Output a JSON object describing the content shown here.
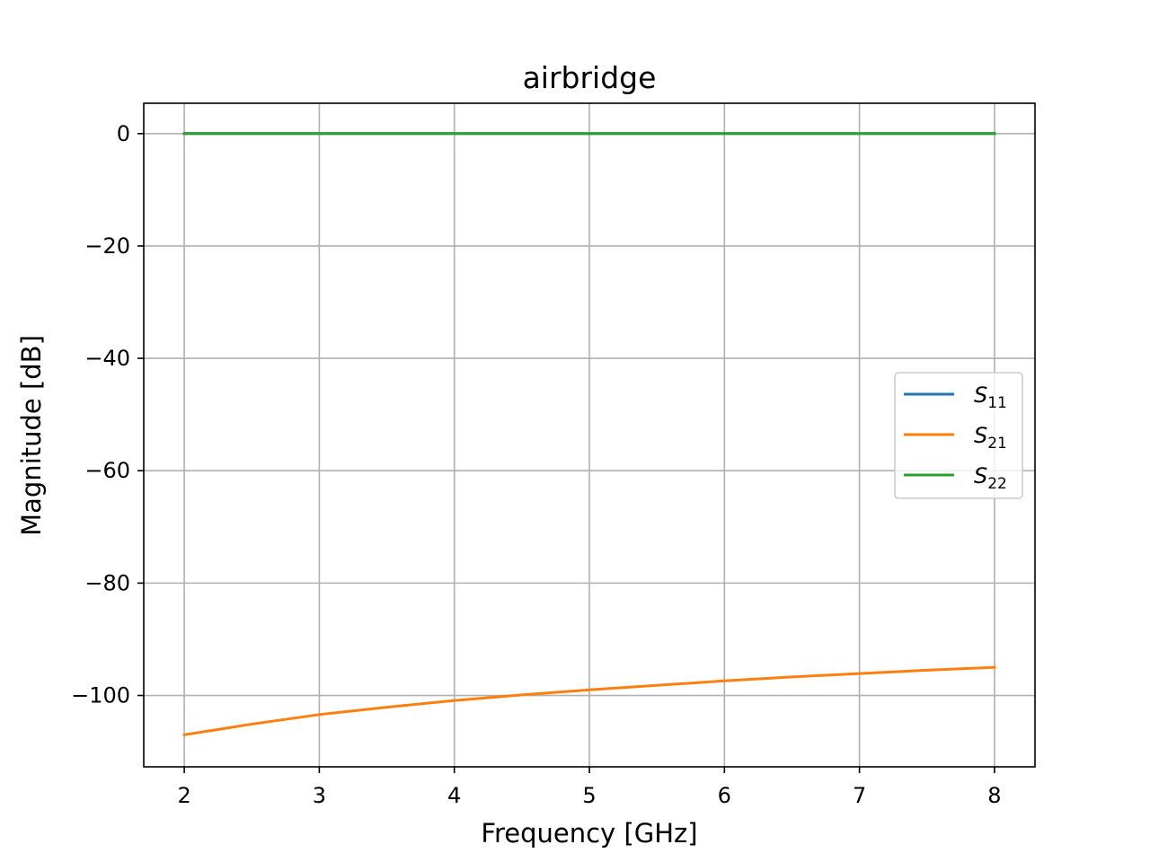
{
  "chart_data": {
    "type": "line",
    "title": "airbridge",
    "xlabel": "Frequency [GHz]",
    "ylabel": "Magnitude [dB]",
    "xlim": [
      1.7,
      8.3
    ],
    "ylim": [
      -112.7,
      5.4
    ],
    "xticks": [
      2,
      3,
      4,
      5,
      6,
      7,
      8
    ],
    "xtick_labels": [
      "2",
      "3",
      "4",
      "5",
      "6",
      "7",
      "8"
    ],
    "yticks": [
      0,
      -20,
      -40,
      -60,
      -80,
      -100
    ],
    "ytick_labels": [
      "0",
      "−20",
      "−40",
      "−60",
      "−80",
      "−100"
    ],
    "grid": true,
    "legend_position": "center-right",
    "series": [
      {
        "name": "S",
        "subscript": "11",
        "color": "#1f77b4",
        "x": [
          2,
          3,
          4,
          5,
          6,
          7,
          8
        ],
        "y": [
          0,
          0,
          0,
          0,
          0,
          0,
          0
        ]
      },
      {
        "name": "S",
        "subscript": "21",
        "color": "#ff7f0e",
        "x": [
          2,
          2.5,
          3,
          3.5,
          4,
          4.5,
          5,
          5.5,
          6,
          6.5,
          7,
          7.5,
          8
        ],
        "y": [
          -107.0,
          -105.1,
          -103.4,
          -102.1,
          -100.9,
          -99.9,
          -99.0,
          -98.2,
          -97.4,
          -96.7,
          -96.1,
          -95.5,
          -95.0
        ]
      },
      {
        "name": "S",
        "subscript": "22",
        "color": "#2ca02c",
        "x": [
          2,
          3,
          4,
          5,
          6,
          7,
          8
        ],
        "y": [
          0,
          0,
          0,
          0,
          0,
          0,
          0
        ]
      }
    ]
  }
}
